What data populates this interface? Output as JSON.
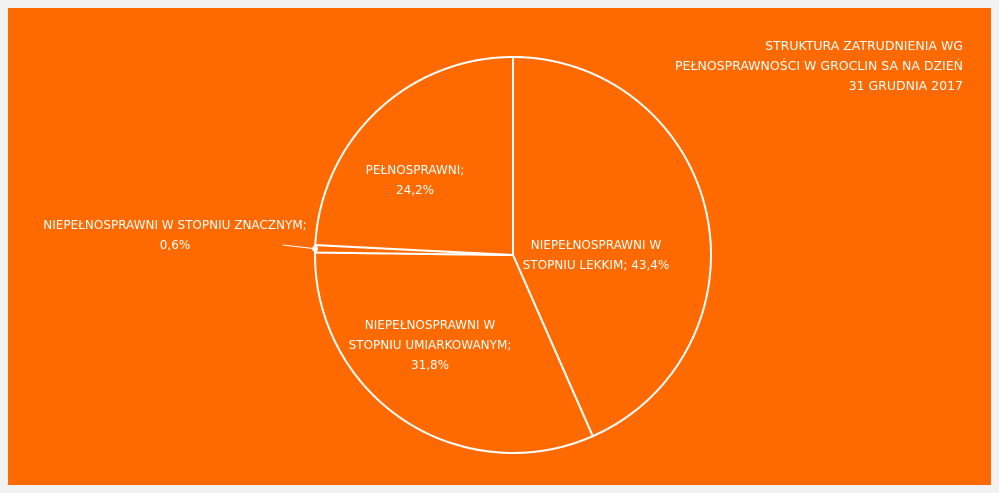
{
  "chart_data": {
    "type": "pie",
    "title": "STRUKTURA ZATRUDNIENIA WG PEŁNOSPRAWNOŚCI W GROCLIN SA NA DZIEŃ 31 GRUDNIA 2017",
    "categories": [
      "NIEPEŁNOSPRAWNI W STOPNIU LEKKIM;",
      "NIEPEŁNOSPRAWNI W STOPNIU UMIARKOWANYM;",
      "NIEPEŁNOSPRAWNI W STOPNIU ZNACZNYM;",
      "PEŁNOSPRAWNI;"
    ],
    "values": [
      43.4,
      31.8,
      0.6,
      24.2
    ],
    "value_labels": [
      "43,4%",
      "31,8%",
      "0,6%",
      "24,2%"
    ],
    "color": "#ff6a00"
  }
}
